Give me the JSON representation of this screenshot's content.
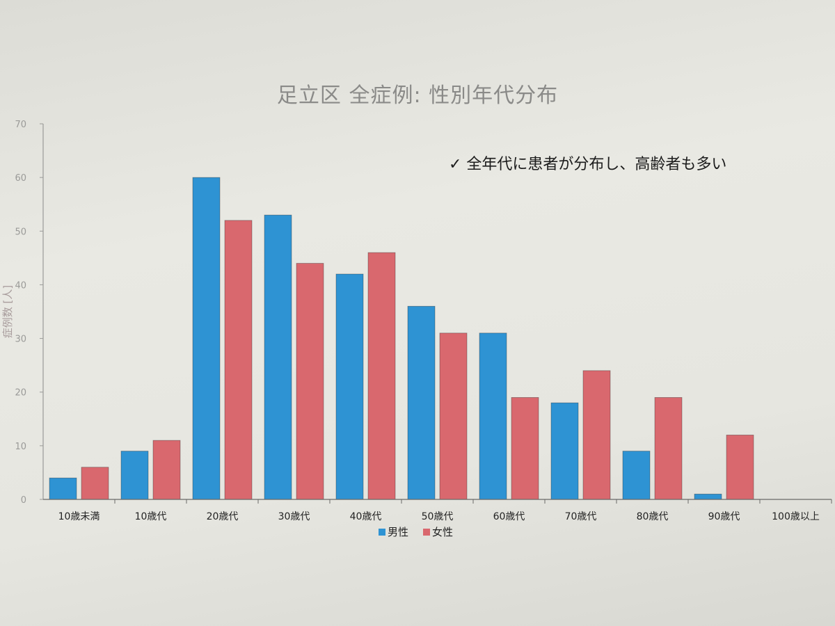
{
  "chart_data": {
    "type": "bar",
    "title": "足立区 全症例: 性別年代分布",
    "annotation": "✓ 全年代に患者が分布し、高齢者も多い",
    "ylabel": "症例数 [人]",
    "xlabel": "",
    "ylim": [
      0,
      70
    ],
    "yticks": [
      0,
      10,
      20,
      30,
      40,
      50,
      60,
      70
    ],
    "grid": false,
    "legend": "bottom",
    "categories": [
      "10歳未満",
      "10歳代",
      "20歳代",
      "30歳代",
      "40歳代",
      "50歳代",
      "60歳代",
      "70歳代",
      "80歳代",
      "90歳代",
      "100歳以上"
    ],
    "series": [
      {
        "name": "男性",
        "color": "#2e93d3",
        "values": [
          4,
          9,
          60,
          53,
          42,
          36,
          31,
          18,
          9,
          1,
          0
        ]
      },
      {
        "name": "女性",
        "color": "#d9686e",
        "values": [
          6,
          11,
          52,
          44,
          46,
          31,
          19,
          24,
          19,
          12,
          0
        ]
      }
    ]
  }
}
